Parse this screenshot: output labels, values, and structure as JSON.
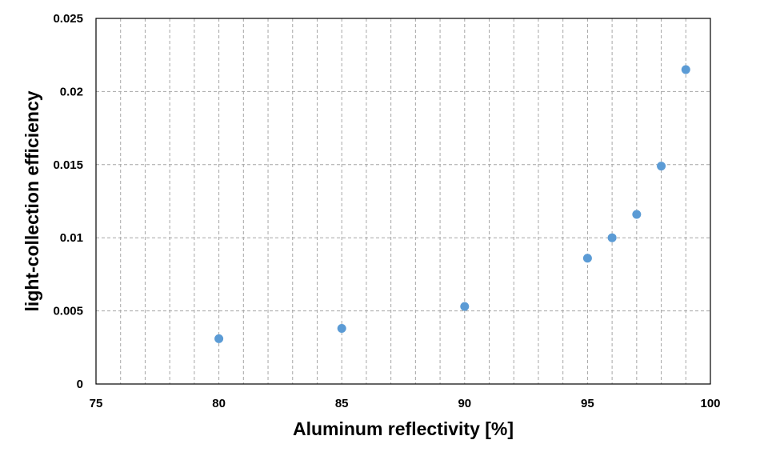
{
  "chart_data": {
    "type": "scatter",
    "title": "",
    "xlabel": "Aluminum reflectivity [%]",
    "ylabel": "light-collection efficiency",
    "xlim": [
      75,
      100
    ],
    "ylim": [
      0,
      0.025
    ],
    "x_ticks": [
      "75",
      "80",
      "85",
      "90",
      "95",
      "100"
    ],
    "y_ticks": [
      "0",
      "0.005",
      "0.01",
      "0.015",
      "0.02",
      "0.025"
    ],
    "grid": true,
    "legend": "none",
    "marker_color": "#5b9bd5",
    "series": [
      {
        "x": [
          80,
          85,
          90,
          95,
          96,
          97,
          98,
          99
        ],
        "y": [
          0.0031,
          0.0038,
          0.0053,
          0.0086,
          0.01,
          0.0116,
          0.0149,
          0.0215
        ]
      }
    ]
  }
}
